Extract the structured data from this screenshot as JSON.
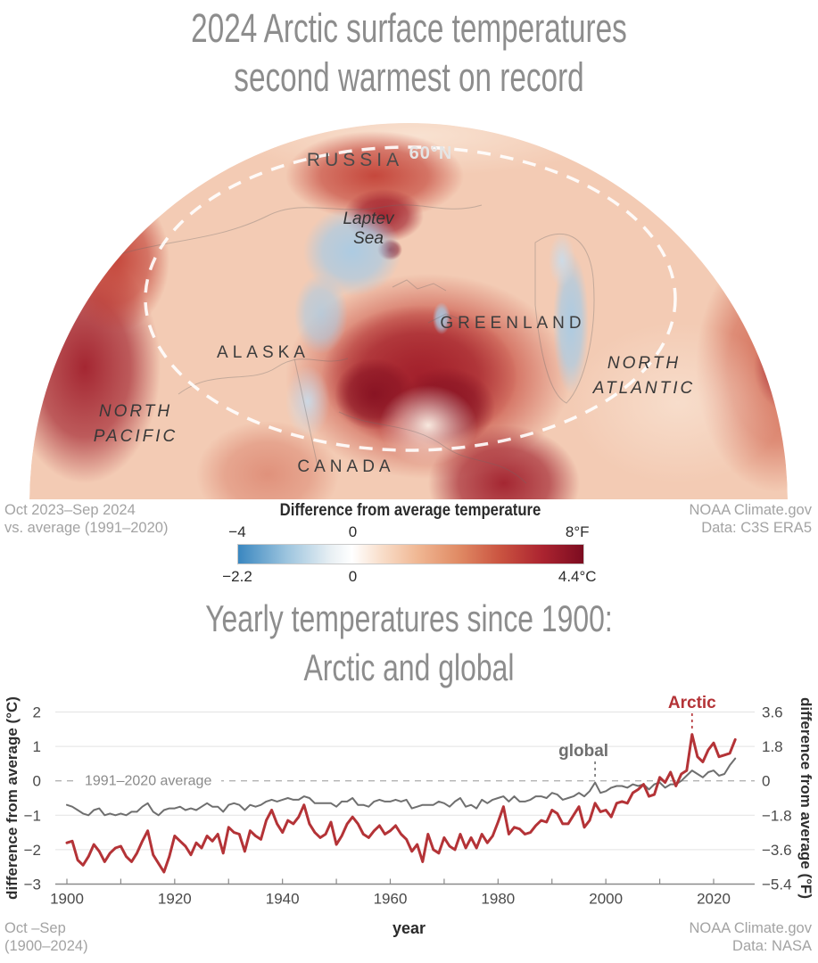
{
  "header": {
    "line1": "2024 Arctic surface temperatures",
    "line2": "second warmest on record"
  },
  "map": {
    "labels": {
      "latitude": "60°N",
      "russia": "RUSSIA",
      "laptev1": "Laptev",
      "laptev2": "Sea",
      "greenland": "GREENLAND",
      "alaska": "ALASKA",
      "north_atlantic1": "NORTH",
      "north_atlantic2": "ATLANTIC",
      "north_pacific1": "NORTH",
      "north_pacific2": "PACIFIC",
      "canada": "CANADA"
    },
    "caption_left1": "Oct 2023–Sep 2024",
    "caption_left2": "vs. average (1991–2020)",
    "caption_right1": "NOAA Climate.gov",
    "caption_right2": "Data: C3S ERA5",
    "legend": {
      "title": "Difference from average temperature",
      "f_left": "−4",
      "f_mid": "0",
      "f_right": "8°F",
      "c_left": "−2.2",
      "c_mid": "0",
      "c_right": "4.4°C",
      "zero_position_pct": 33.3,
      "colorbar_stops": [
        [
          "#3a87c0",
          0
        ],
        [
          "#9cc4de",
          14
        ],
        [
          "#e9f0f4",
          27
        ],
        [
          "#ffffff",
          33
        ],
        [
          "#f9e0cd",
          41
        ],
        [
          "#f0b793",
          52
        ],
        [
          "#e08a64",
          64
        ],
        [
          "#ca5340",
          76
        ],
        [
          "#ac2430",
          88
        ],
        [
          "#7c0c20",
          100
        ]
      ]
    }
  },
  "chart": {
    "title_line1": "Yearly temperatures since 1900:",
    "title_line2": "Arctic and global",
    "caption_left1": "Oct –Sep",
    "caption_left2": "(1900–2024)",
    "caption_right1": "NOAA Climate.gov",
    "caption_right2": "Data: NASA"
  },
  "chart_data": {
    "type": "line",
    "title": "Yearly temperatures since 1900: Arctic and global",
    "x_start": 1900,
    "x_step": 1,
    "x_end": 2024,
    "xticks": [
      1900,
      1920,
      1940,
      1960,
      1980,
      2000,
      2020
    ],
    "xlabel": "year",
    "ylabel_left": "difference from average (°C)",
    "ylabel_right": "difference from average (°F)",
    "ylim": [
      -3,
      2
    ],
    "yticks_c": [
      2,
      1,
      0,
      -1,
      -2,
      -3
    ],
    "yticks_f_labels": [
      "3.6",
      "1.8",
      "0",
      "−1.8",
      "−3.6",
      "−5.4"
    ],
    "zero_line_label": "1991–2020 average",
    "grid": true,
    "legend_position": "inline-annotations",
    "annotations": [
      {
        "text": "Arctic",
        "series": "Arctic",
        "points_to_year": 2016
      },
      {
        "text": "global",
        "series": "global",
        "points_to_year": 1998
      }
    ],
    "series": [
      {
        "name": "Arctic",
        "color": "#b43337",
        "values": [
          -1.8,
          -1.75,
          -2.3,
          -2.45,
          -2.2,
          -1.85,
          -2.05,
          -2.35,
          -2.1,
          -1.95,
          -1.9,
          -2.2,
          -2.35,
          -2.1,
          -1.75,
          -1.45,
          -2.15,
          -2.4,
          -2.65,
          -2.2,
          -1.6,
          -1.75,
          -1.9,
          -2.15,
          -1.8,
          -1.95,
          -1.6,
          -1.75,
          -1.55,
          -2.1,
          -1.35,
          -1.5,
          -1.55,
          -2.05,
          -1.45,
          -1.6,
          -1.7,
          -1.15,
          -0.85,
          -1.25,
          -1.5,
          -1.15,
          -1.25,
          -1.05,
          -0.7,
          -1.25,
          -1.5,
          -1.65,
          -1.55,
          -1.2,
          -1.85,
          -1.6,
          -1.25,
          -1.05,
          -1.25,
          -1.55,
          -1.65,
          -1.45,
          -1.3,
          -1.55,
          -1.45,
          -1.3,
          -1.55,
          -1.7,
          -2.05,
          -1.85,
          -2.35,
          -1.55,
          -2.0,
          -2.1,
          -1.65,
          -1.9,
          -2.0,
          -1.55,
          -1.95,
          -1.65,
          -1.95,
          -1.55,
          -1.8,
          -1.6,
          -1.2,
          -0.75,
          -1.55,
          -1.35,
          -1.4,
          -1.55,
          -1.5,
          -1.3,
          -1.15,
          -1.2,
          -0.85,
          -0.95,
          -1.25,
          -1.25,
          -1.0,
          -0.75,
          -1.35,
          -1.15,
          -0.65,
          -0.9,
          -0.85,
          -1.05,
          -0.65,
          -0.6,
          -0.65,
          -0.35,
          -0.25,
          -0.1,
          -0.45,
          -0.4,
          0.1,
          -0.05,
          0.25,
          -0.15,
          0.2,
          0.3,
          1.35,
          0.7,
          0.55,
          0.9,
          1.1,
          0.7,
          0.75,
          0.8,
          1.2
        ]
      },
      {
        "name": "global",
        "color": "#6f6f6f",
        "values": [
          -0.7,
          -0.75,
          -0.85,
          -0.95,
          -1.0,
          -0.85,
          -0.8,
          -1.0,
          -0.95,
          -1.0,
          -0.95,
          -1.0,
          -0.9,
          -0.9,
          -0.75,
          -0.65,
          -0.9,
          -1.0,
          -0.85,
          -0.8,
          -0.8,
          -0.75,
          -0.85,
          -0.8,
          -0.85,
          -0.75,
          -0.65,
          -0.75,
          -0.75,
          -0.9,
          -0.7,
          -0.65,
          -0.7,
          -0.85,
          -0.7,
          -0.75,
          -0.7,
          -0.6,
          -0.55,
          -0.6,
          -0.55,
          -0.5,
          -0.55,
          -0.55,
          -0.45,
          -0.5,
          -0.65,
          -0.65,
          -0.65,
          -0.65,
          -0.75,
          -0.6,
          -0.6,
          -0.5,
          -0.7,
          -0.7,
          -0.75,
          -0.6,
          -0.55,
          -0.6,
          -0.6,
          -0.55,
          -0.6,
          -0.55,
          -0.8,
          -0.75,
          -0.7,
          -0.7,
          -0.7,
          -0.6,
          -0.65,
          -0.75,
          -0.6,
          -0.5,
          -0.75,
          -0.7,
          -0.8,
          -0.55,
          -0.65,
          -0.55,
          -0.5,
          -0.45,
          -0.6,
          -0.45,
          -0.6,
          -0.6,
          -0.55,
          -0.45,
          -0.45,
          -0.5,
          -0.35,
          -0.4,
          -0.55,
          -0.5,
          -0.45,
          -0.35,
          -0.45,
          -0.3,
          -0.05,
          -0.35,
          -0.3,
          -0.2,
          -0.15,
          -0.15,
          -0.2,
          -0.1,
          -0.15,
          -0.1,
          -0.25,
          -0.1,
          -0.05,
          -0.2,
          -0.1,
          -0.1,
          0.0,
          0.15,
          0.3,
          0.2,
          0.1,
          0.25,
          0.3,
          0.15,
          0.2,
          0.45,
          0.65
        ]
      }
    ]
  }
}
